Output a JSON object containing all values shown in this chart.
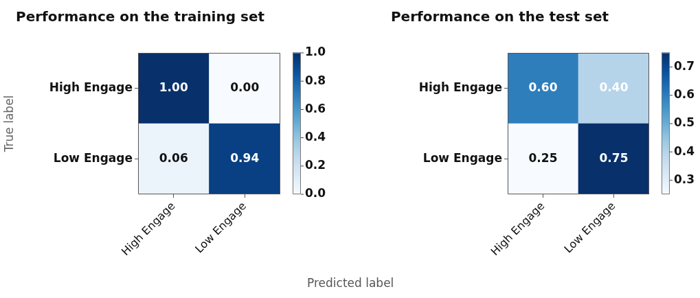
{
  "chart_data": [
    {
      "type": "heatmap",
      "title": "Performance on the training set",
      "xlabel": "Predicted label",
      "ylabel": "True label",
      "categories": [
        "High Engage",
        "Low Engage"
      ],
      "y_categories": [
        "High Engage",
        "Low Engage"
      ],
      "cells": [
        [
          1.0,
          0.0
        ],
        [
          0.06,
          0.94
        ]
      ],
      "cell_labels": [
        [
          "1.00",
          "0.00"
        ],
        [
          "0.06",
          "0.94"
        ]
      ],
      "clim": [
        0,
        1
      ],
      "cticks": [
        {
          "value": 0,
          "label": "0.0"
        },
        {
          "value": 0.2,
          "label": "0.2"
        },
        {
          "value": 0.4,
          "label": "0.4"
        },
        {
          "value": 0.6,
          "label": "0.6"
        },
        {
          "value": 0.8,
          "label": "0.8"
        },
        {
          "value": 1,
          "label": "1.0"
        }
      ]
    },
    {
      "type": "heatmap",
      "title": "Performance on the test set",
      "categories": [
        "High Engage",
        "Low Engage"
      ],
      "y_categories": [
        "High Engage",
        "Low Engage"
      ],
      "cells": [
        [
          0.6,
          0.4
        ],
        [
          0.25,
          0.75
        ]
      ],
      "cell_labels": [
        [
          "0.60",
          "0.40"
        ],
        [
          "0.25",
          "0.75"
        ]
      ],
      "clim": [
        0.25,
        0.75
      ],
      "cticks": [
        0.3,
        0.4,
        0.5,
        0.6,
        0.7
      ]
    }
  ]
}
